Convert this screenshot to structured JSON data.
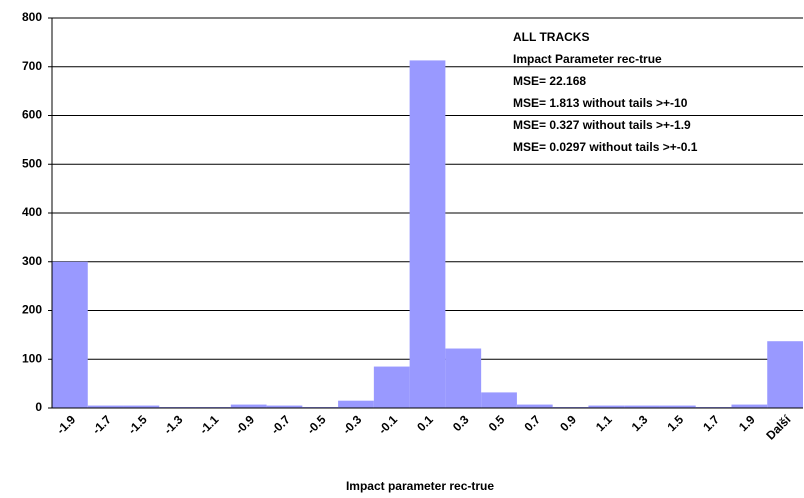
{
  "chart_data": {
    "type": "bar",
    "categories": [
      "-1.9",
      "-1.7",
      "-1.5",
      "-1.3",
      "-1.1",
      "-0.9",
      "-0.7",
      "-0.5",
      "-0.3",
      "-0.1",
      "0.1",
      "0.3",
      "0.5",
      "0.7",
      "0.9",
      "1.1",
      "1.3",
      "1.5",
      "1.7",
      "1.9",
      "Další"
    ],
    "values": [
      300,
      5,
      5,
      2,
      2,
      7,
      5,
      2,
      15,
      85,
      713,
      122,
      32,
      7,
      2,
      5,
      5,
      5,
      2,
      7,
      137
    ],
    "color": "#9999ff",
    "ylim": [
      0,
      800
    ],
    "yticks": [
      0,
      100,
      200,
      300,
      400,
      500,
      600,
      700,
      800
    ],
    "grid": true,
    "x_label": "Impact parameter rec-true",
    "annotations": [
      "ALL TRACKS",
      "Impact Parameter rec-true",
      "MSE= 22.168",
      "MSE= 1.813 without tails >+-10",
      "MSE= 0.327 without tails >+-1.9",
      "MSE= 0.0297 without tails >+-0.1"
    ]
  }
}
